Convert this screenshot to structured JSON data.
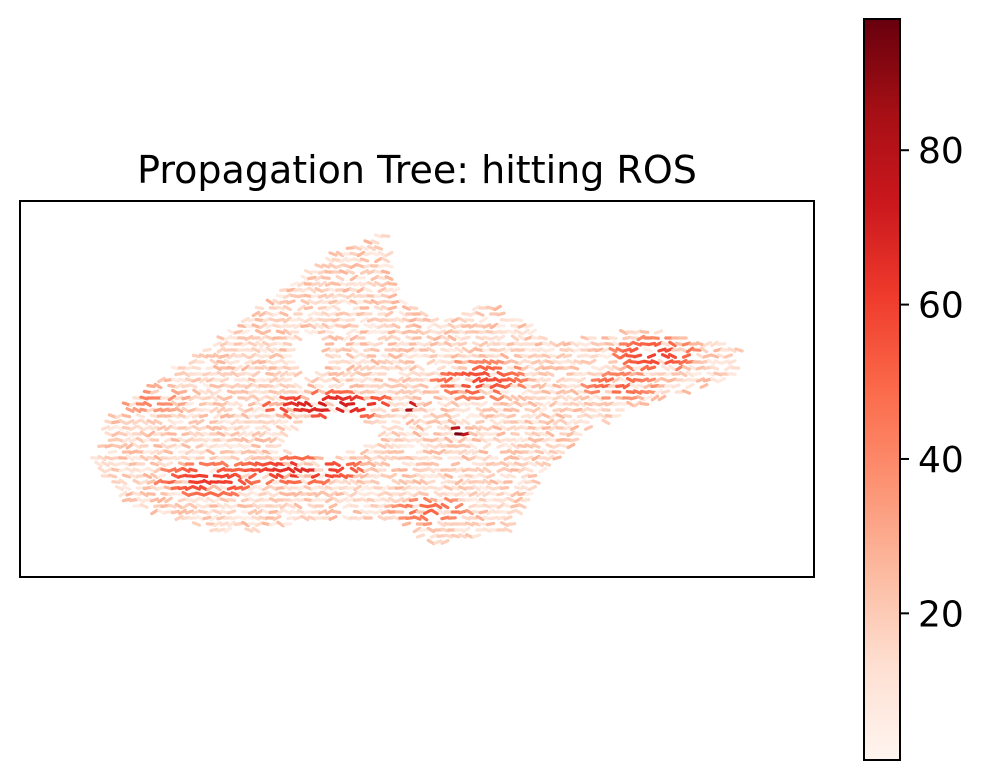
{
  "chart_data": {
    "type": "heatmap",
    "subtype": "propagation-tree-edge-map",
    "title": "Propagation Tree: hitting ROS",
    "xlabel": "",
    "ylabel": "",
    "axis_ticks_visible": false,
    "colormap": "Reds",
    "colorbar": {
      "range": [
        1,
        97
      ],
      "ticks": [
        20,
        40,
        60,
        80
      ],
      "tick_labels": [
        "20",
        "40",
        "60",
        "80"
      ],
      "placement": "right"
    },
    "value_summary": {
      "typical_range": [
        5,
        35
      ],
      "high_value_clusters": [
        {
          "region": "center band",
          "approx_value": 70
        },
        {
          "region": "lower-left band",
          "approx_value": 65
        },
        {
          "region": "right lobe",
          "approx_value": 60
        },
        {
          "region": "center spot",
          "approx_value": 97
        }
      ]
    },
    "colors": {
      "low": "#fff5f0",
      "mid": "#fb6a4a",
      "high": "#67000d",
      "frame": "#000000"
    }
  }
}
